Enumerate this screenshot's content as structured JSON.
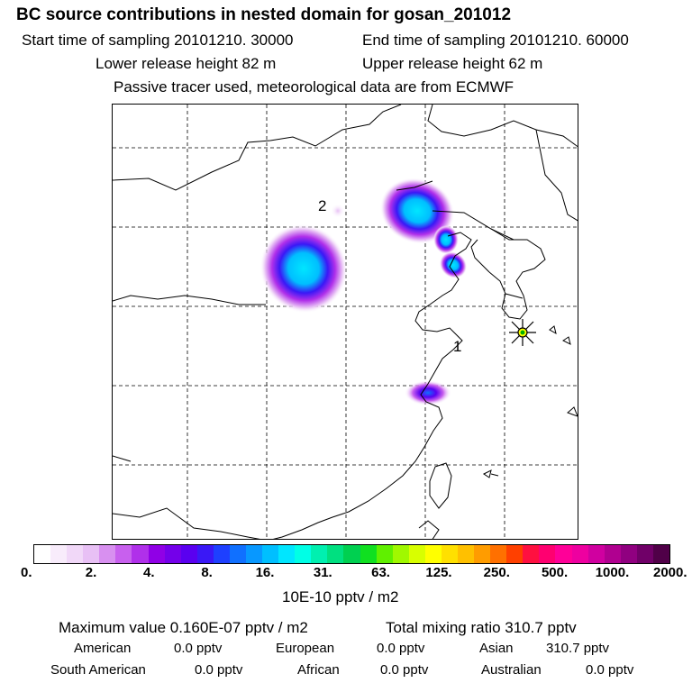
{
  "header": {
    "title": "BC  source contributions in nested domain for gosan_201012",
    "start_label": "Start time of sampling 20101210. 30000",
    "end_label": "End time of sampling 20101210. 60000",
    "lower_label": "Lower release height   82 m",
    "upper_label": "Upper release height   62 m",
    "tracer_label": "Passive tracer used, meteorological data are from ECMWF"
  },
  "chart_data": {
    "type": "heatmap",
    "map_labels": [
      "2",
      "1"
    ],
    "colorbar": {
      "ticks": [
        "0.",
        "2.",
        "4.",
        "8.",
        "16.",
        "31.",
        "63.",
        "125.",
        "250.",
        "500.",
        "1000.",
        "2000."
      ],
      "unit": "10E-10 pptv / m2",
      "colors": [
        "#ffffff",
        "#f8ecfb",
        "#f1d8f8",
        "#e8c0f5",
        "#d890f0",
        "#c860ee",
        "#b030ea",
        "#9000e6",
        "#7400ea",
        "#5a00f0",
        "#3a18f6",
        "#1e40ff",
        "#1070ff",
        "#0898ff",
        "#00bfff",
        "#00e6ff",
        "#00ffe6",
        "#00f0b0",
        "#00e080",
        "#00d050",
        "#10e020",
        "#60f000",
        "#a0f800",
        "#d8ff00",
        "#ffff00",
        "#ffe000",
        "#ffc000",
        "#ff9c00",
        "#ff7000",
        "#ff4000",
        "#ff1040",
        "#ff0070",
        "#ff0098",
        "#ee00a0",
        "#d000a0",
        "#b00090",
        "#900080",
        "#700068",
        "#500048"
      ]
    }
  },
  "footer": {
    "max_label": "Maximum value  0.160E-07 pptv / m2",
    "total_label": "Total mixing ratio      310.7 pptv",
    "american": "American",
    "american_val": "0.0 pptv",
    "european": "European",
    "european_val": "0.0 pptv",
    "asian": "Asian",
    "asian_val": "310.7 pptv",
    "south_american": "South American",
    "south_american_val": "0.0 pptv",
    "african": "African",
    "african_val": "0.0 pptv",
    "australian": "Australian",
    "australian_val": "0.0 pptv"
  }
}
